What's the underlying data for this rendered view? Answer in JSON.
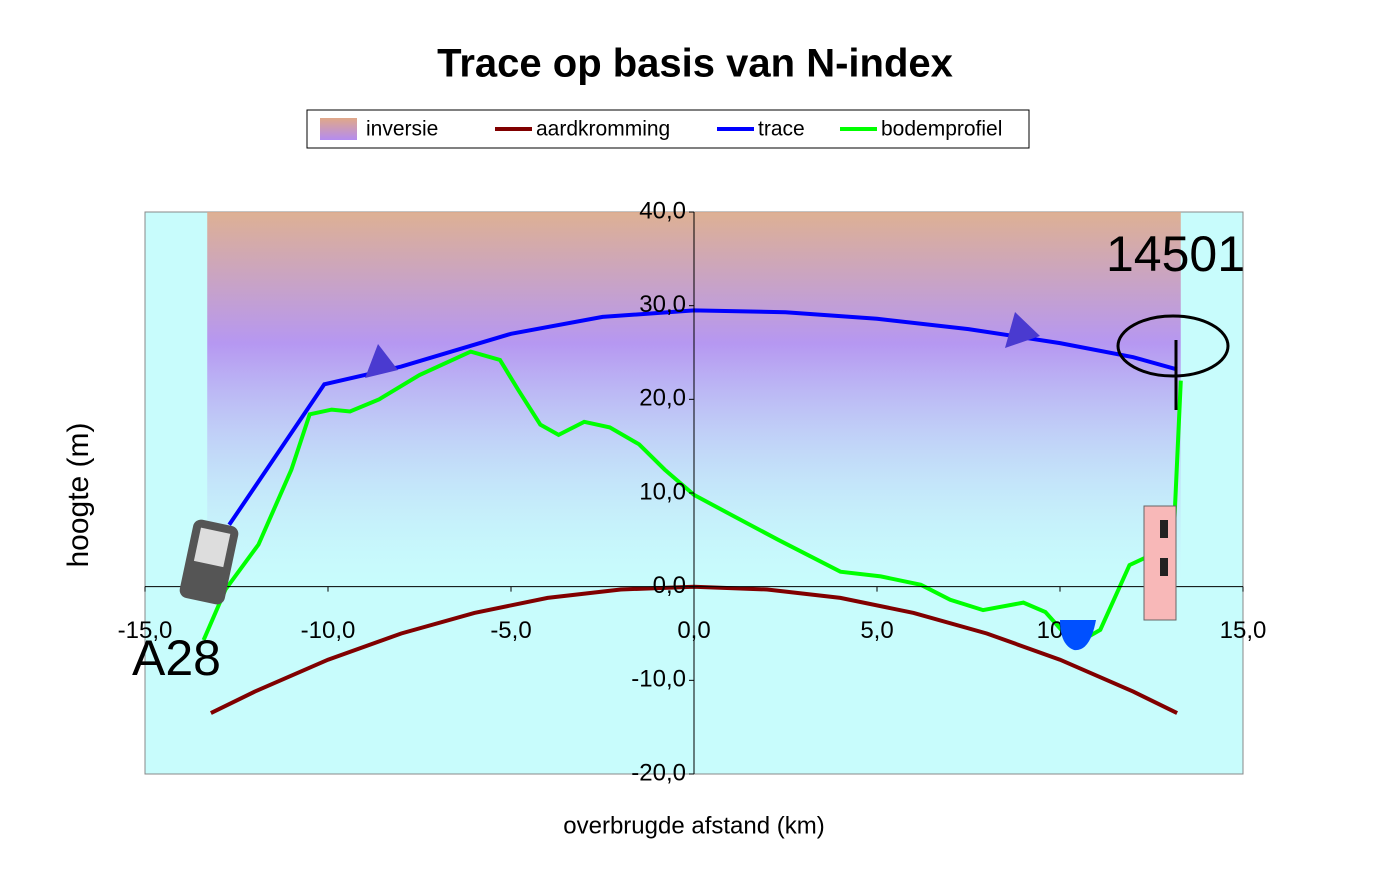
{
  "chart_data": {
    "type": "line",
    "title": "Trace op basis van N-index",
    "x_label": "overbrugde afstand (km)",
    "y_label": "hoogte (m)",
    "xlim": [
      -15,
      15
    ],
    "ylim": [
      -20,
      40
    ],
    "xticks": [
      {
        "value": -15,
        "label": "-15,0"
      },
      {
        "value": -10,
        "label": "-10,0"
      },
      {
        "value": -5,
        "label": "-5,0"
      },
      {
        "value": 0,
        "label": "0,0"
      },
      {
        "value": 5,
        "label": "5,0"
      },
      {
        "value": 10,
        "label": "10,0"
      },
      {
        "value": 15,
        "label": "15,0"
      }
    ],
    "yticks": [
      {
        "value": -20,
        "label": "-20,0"
      },
      {
        "value": -10,
        "label": "-10,0"
      },
      {
        "value": 0,
        "label": "0,0"
      },
      {
        "value": 10,
        "label": "10,0"
      },
      {
        "value": 20,
        "label": "20,0"
      },
      {
        "value": 30,
        "label": "30,0"
      },
      {
        "value": 40,
        "label": "40,0"
      }
    ],
    "background": "#c8fcfc",
    "series": [
      {
        "name": "inversie",
        "color": "#b48cf0",
        "x_range": [
          -13.3,
          13.3
        ]
      },
      {
        "name": "aardkromming",
        "color": "#800000",
        "x": [
          -13.2,
          -12,
          -10,
          -8,
          -6,
          -4,
          -2,
          0,
          2,
          4,
          6,
          8,
          10,
          12,
          13.2
        ],
        "values": [
          -13.5,
          -11.2,
          -7.8,
          -5,
          -2.8,
          -1.2,
          -0.3,
          0,
          -0.3,
          -1.2,
          -2.8,
          -5,
          -7.8,
          -11.2,
          -13.5
        ]
      },
      {
        "name": "trace",
        "color": "#0000ff",
        "x": [
          -12.7,
          -10.1,
          -8,
          -5,
          -2.5,
          0,
          2.5,
          5,
          7.5,
          10,
          12,
          13.2
        ],
        "values": [
          6.6,
          21.6,
          23.5,
          27,
          28.8,
          29.5,
          29.3,
          28.6,
          27.5,
          26,
          24.5,
          23.2
        ]
      },
      {
        "name": "bodemprofiel",
        "color": "#00ff00",
        "x": [
          -13.4,
          -12.8,
          -11.9,
          -11,
          -10.5,
          -9.9,
          -9.4,
          -8.6,
          -7.5,
          -6.1,
          -5.3,
          -4.8,
          -4.2,
          -3.7,
          -3,
          -2.3,
          -1.5,
          -0.8,
          0,
          1,
          2.3,
          4,
          5.1,
          6.2,
          7,
          7.9,
          9,
          9.6,
          10.4,
          11.1,
          11.9,
          12.5,
          13.1,
          13.3
        ],
        "values": [
          -5.7,
          -0.3,
          4.5,
          12.5,
          18.4,
          18.9,
          18.7,
          20,
          22.6,
          25.1,
          24.2,
          21,
          17.3,
          16.2,
          17.6,
          17,
          15.2,
          12.5,
          9.8,
          7.7,
          5,
          1.6,
          1.1,
          0.2,
          -1.4,
          -2.5,
          -1.7,
          -2.7,
          -6.2,
          -4.6,
          2.3,
          3.4,
          5,
          22
        ]
      }
    ],
    "annotations": [
      "A28",
      "14501"
    ]
  }
}
